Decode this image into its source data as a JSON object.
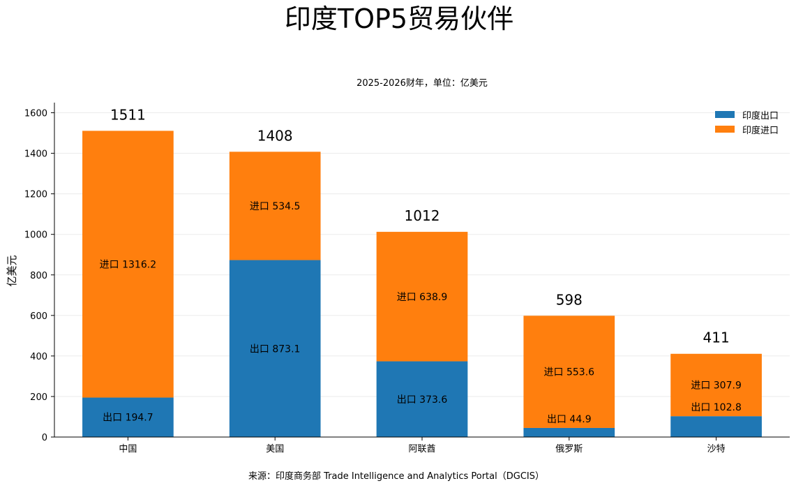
{
  "chart_data": {
    "type": "bar",
    "stacked": true,
    "title": "印度TOP5贸易伙伴",
    "subtitle": "2025-2026财年，单位：亿美元",
    "xlabel": "",
    "ylabel": "亿美元",
    "ylim": [
      0,
      1650
    ],
    "yticks": [
      0,
      200,
      400,
      600,
      800,
      1000,
      1200,
      1400,
      1600
    ],
    "grid": true,
    "legend_position": "top-right",
    "categories": [
      "中国",
      "美国",
      "阿联酋",
      "俄罗斯",
      "沙特"
    ],
    "series": [
      {
        "name": "印度出口",
        "color": "#1f77b4",
        "values": [
          194.7,
          873.1,
          373.6,
          44.9,
          102.8
        ],
        "labels": [
          "出口 194.7",
          "出口 873.1",
          "出口 373.6",
          "出口 44.9",
          "出口 102.8"
        ]
      },
      {
        "name": "印度进口",
        "color": "#ff7f0e",
        "values": [
          1316.2,
          534.5,
          638.9,
          553.6,
          307.9
        ],
        "labels": [
          "进口 1316.2",
          "进口 534.5",
          "进口 638.9",
          "进口 553.6",
          "进口 307.9"
        ]
      }
    ],
    "totals": [
      1511,
      1408,
      1012,
      598,
      411
    ],
    "total_labels": [
      "1511",
      "1408",
      "1012",
      "598",
      "411"
    ],
    "source": "来源：印度商务部 Trade Intelligence and Analytics Portal（DGCIS）"
  }
}
